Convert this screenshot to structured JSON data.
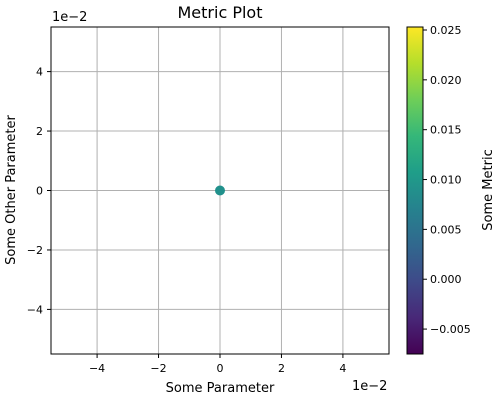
{
  "chart_data": {
    "type": "scatter",
    "title": "Metric Plot",
    "xlabel": "Some Parameter",
    "ylabel": "Some Other Parameter",
    "x_offset_text": "1e−2",
    "y_offset_text": "1e−2",
    "xlim": [
      -5.5,
      5.5
    ],
    "ylim": [
      -5.5,
      5.5
    ],
    "xticks": [
      -4,
      -2,
      0,
      2,
      4
    ],
    "yticks": [
      -4,
      -2,
      0,
      2,
      4
    ],
    "xtick_labels": [
      "−4",
      "−2",
      "0",
      "2",
      "4"
    ],
    "ytick_labels": [
      "−4",
      "−2",
      "0",
      "2",
      "4"
    ],
    "grid": true,
    "points": [
      {
        "x": 0,
        "y": 0,
        "metric": 0.01,
        "color": "#21918c"
      }
    ],
    "colorbar": {
      "label": "Some Metric",
      "colormap": "viridis",
      "range": [
        -0.0075,
        0.0253
      ],
      "ticks": [
        -0.005,
        0.0,
        0.005,
        0.01,
        0.015,
        0.02,
        0.025
      ],
      "tick_labels": [
        "−0.005",
        "0.000",
        "0.005",
        "0.010",
        "0.015",
        "0.020",
        "0.025"
      ],
      "stops": [
        "#440154",
        "#482878",
        "#3e4a89",
        "#31688e",
        "#26828e",
        "#1f9e89",
        "#35b779",
        "#6ece58",
        "#b5de2b",
        "#fde725"
      ]
    }
  }
}
